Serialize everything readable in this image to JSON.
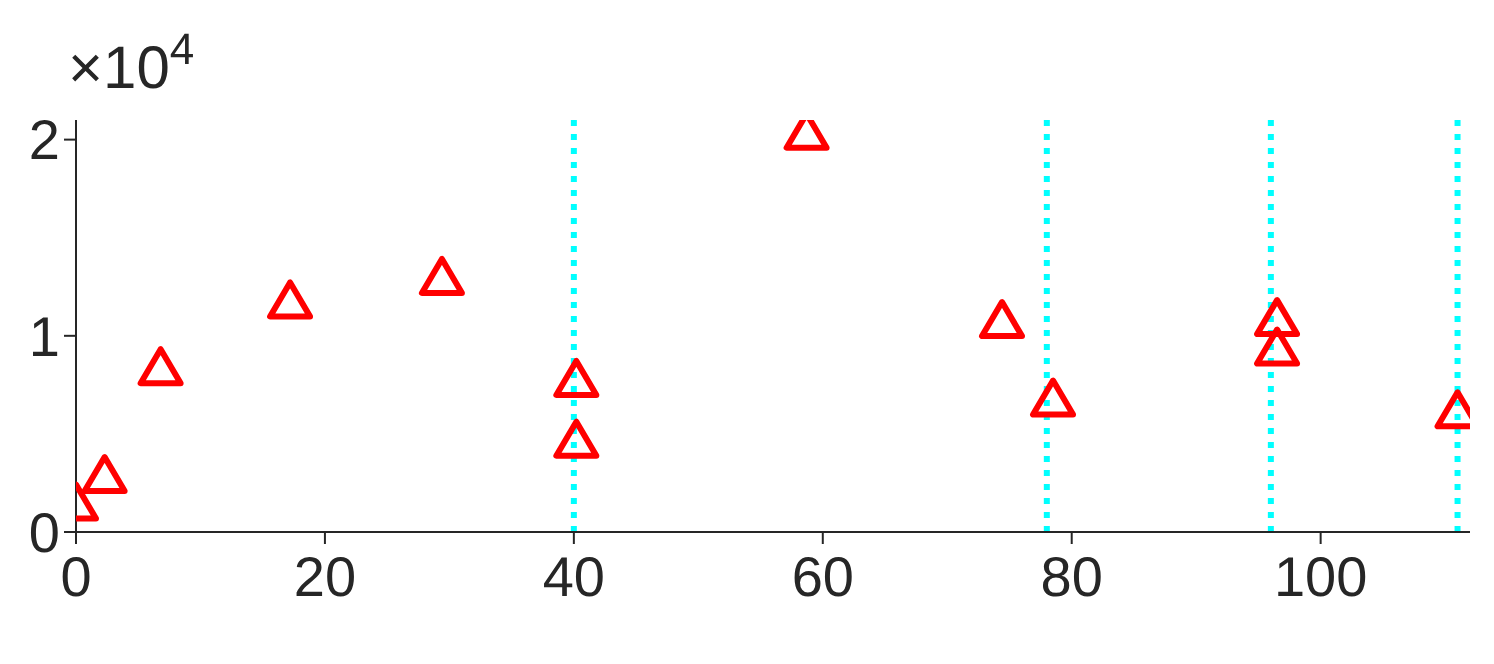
{
  "chart_data": {
    "type": "scatter",
    "marker": "triangle",
    "color": "#ff0000",
    "x": [
      0,
      2.3,
      6.8,
      17.2,
      29.4,
      40.2,
      40.2,
      58.7,
      74.4,
      78.5,
      96.5,
      96.5,
      111
    ],
    "values": [
      0.14,
      0.28,
      0.83,
      1.17,
      1.29,
      0.77,
      0.46,
      2.03,
      1.07,
      0.67,
      1.08,
      0.93,
      0.61
    ],
    "xlim": [
      0,
      112
    ],
    "xticks": [
      0,
      20,
      40,
      60,
      80,
      100
    ],
    "ylim": [
      0,
      2.1
    ],
    "yticks": [
      0,
      1,
      2
    ],
    "annotations": [
      "×10$^{4}$"
    ],
    "ref_lines": [
      {
        "axis": "x",
        "value": 40,
        "color": "#00ffff",
        "line_style": "dotted"
      },
      {
        "axis": "x",
        "value": 78,
        "color": "#00ffff",
        "line_style": "dotted"
      },
      {
        "axis": "x",
        "value": 96,
        "color": "#00ffff",
        "line_style": "dotted"
      },
      {
        "axis": "x",
        "value": 111,
        "color": "#00ffff",
        "line_style": "dotted"
      }
    ],
    "grid": false,
    "legend": false
  }
}
